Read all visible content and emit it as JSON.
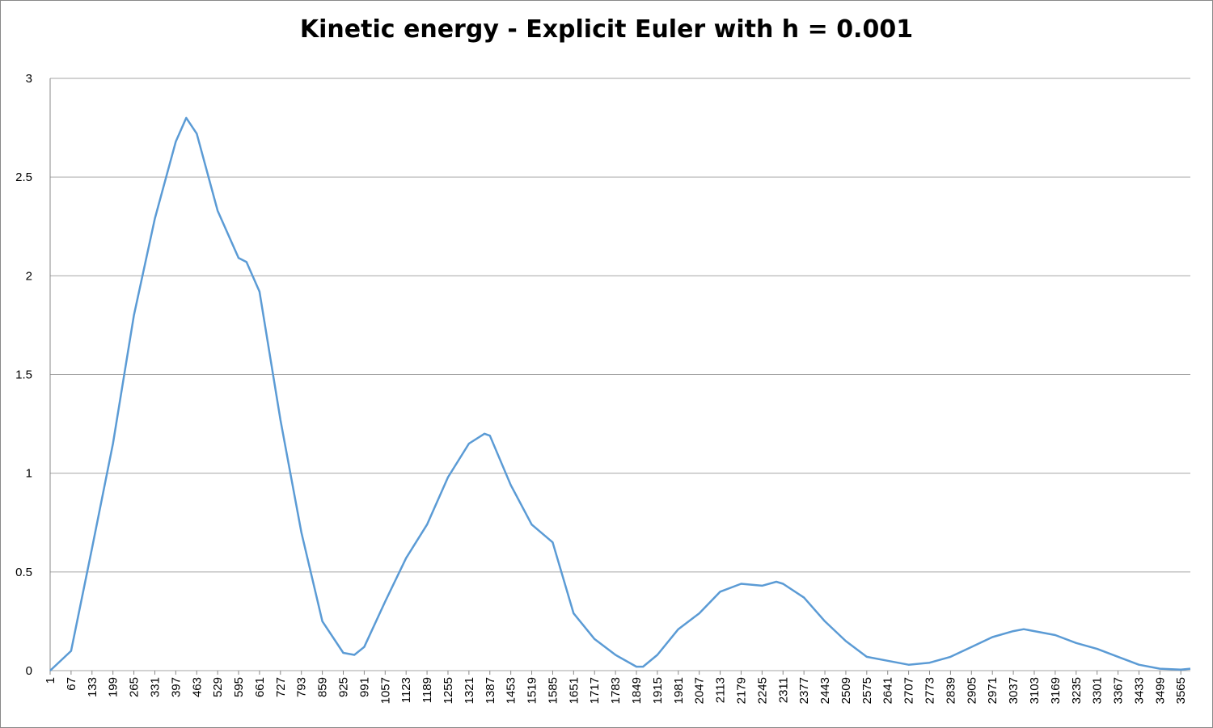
{
  "chart_data": {
    "type": "line",
    "title": "Kinetic energy - Explicit Euler with h = 0.001",
    "x": [
      1,
      67,
      133,
      199,
      265,
      331,
      397,
      430,
      463,
      529,
      595,
      620,
      661,
      727,
      793,
      859,
      925,
      960,
      991,
      1057,
      1123,
      1189,
      1255,
      1321,
      1370,
      1387,
      1453,
      1519,
      1585,
      1651,
      1717,
      1783,
      1849,
      1870,
      1915,
      1981,
      2047,
      2113,
      2179,
      2245,
      2290,
      2311,
      2377,
      2443,
      2509,
      2575,
      2641,
      2707,
      2773,
      2839,
      2905,
      2971,
      3037,
      3070,
      3103,
      3169,
      3235,
      3301,
      3367,
      3433,
      3499,
      3565,
      3595
    ],
    "series": [
      {
        "color": "#5b9bd5",
        "values": [
          0,
          0.1,
          0.62,
          1.15,
          1.8,
          2.29,
          2.68,
          2.8,
          2.72,
          2.33,
          2.09,
          2.07,
          1.92,
          1.27,
          0.7,
          0.25,
          0.09,
          0.08,
          0.12,
          0.35,
          0.57,
          0.74,
          0.98,
          1.15,
          1.2,
          1.19,
          0.94,
          0.74,
          0.65,
          0.29,
          0.16,
          0.08,
          0.02,
          0.02,
          0.08,
          0.21,
          0.29,
          0.4,
          0.44,
          0.43,
          0.45,
          0.44,
          0.37,
          0.25,
          0.15,
          0.07,
          0.05,
          0.03,
          0.04,
          0.07,
          0.12,
          0.17,
          0.2,
          0.21,
          0.2,
          0.18,
          0.14,
          0.11,
          0.07,
          0.03,
          0.01,
          0.005,
          0.01
        ]
      }
    ],
    "xlim": [
      1,
      3595
    ],
    "xticks": [
      1,
      67,
      133,
      199,
      265,
      331,
      397,
      463,
      529,
      595,
      661,
      727,
      793,
      859,
      925,
      991,
      1057,
      1123,
      1189,
      1255,
      1321,
      1387,
      1453,
      1519,
      1585,
      1651,
      1717,
      1783,
      1849,
      1915,
      1981,
      2047,
      2113,
      2179,
      2245,
      2311,
      2377,
      2443,
      2509,
      2575,
      2641,
      2707,
      2773,
      2839,
      2905,
      2971,
      3037,
      3103,
      3169,
      3235,
      3301,
      3367,
      3433,
      3499,
      3565
    ],
    "ylim": [
      0,
      3
    ],
    "yticks": [
      0,
      0.5,
      1,
      1.5,
      2,
      2.5,
      3
    ],
    "grid": true
  }
}
